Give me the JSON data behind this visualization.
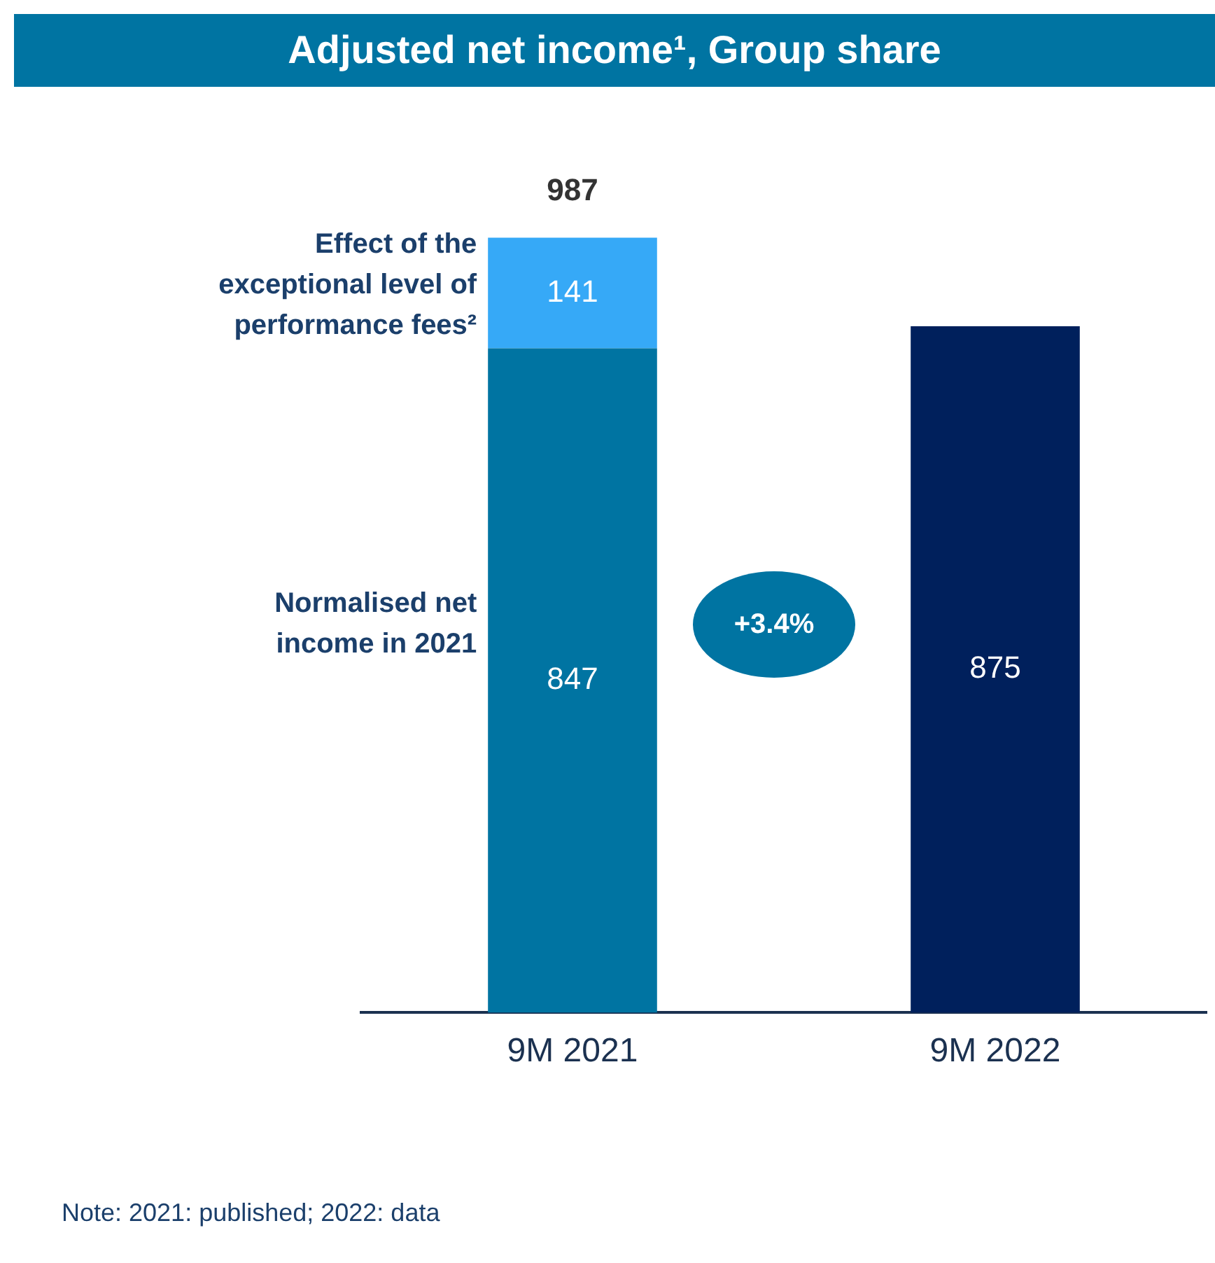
{
  "chart_data": {
    "type": "bar",
    "title": "Adjusted net income¹, Group share",
    "stacked": true,
    "data_labels": true,
    "legend": false,
    "grid": false,
    "categories": [
      "9M 2021",
      "9M 2022"
    ],
    "series": [
      {
        "name": "Normalised net income in 2021",
        "colors": [
          "#0074a2",
          "#00205c"
        ],
        "values": [
          847,
          875
        ]
      },
      {
        "name": "Effect of the exceptional level of performance fees²",
        "color": "#36a9f7",
        "values": [
          141,
          null
        ]
      }
    ],
    "totals": [
      "987",
      null
    ],
    "annotations": [
      "+3.4%",
      "Note: 2021: published; 2022: data"
    ]
  }
}
